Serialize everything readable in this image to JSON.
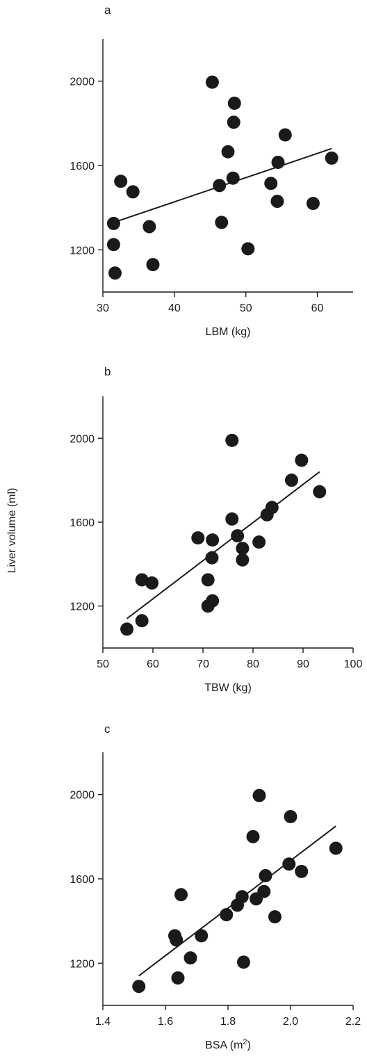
{
  "figure": {
    "shared_ylabel": "Liver volume (ml)"
  },
  "chart_data": [
    {
      "type": "scatter",
      "panel": "a",
      "xlabel": "LBM (kg)",
      "ylabel": "",
      "xlim": [
        30,
        65
      ],
      "ylim": [
        1000,
        2200
      ],
      "xticks": [
        30,
        40,
        50,
        60
      ],
      "xtick_labels": [
        "30",
        "40",
        "50",
        "60"
      ],
      "yticks": [
        1200,
        1600,
        2000
      ],
      "ytick_labels": [
        "1200",
        "1600",
        "2000"
      ],
      "points": [
        {
          "x": 31.5,
          "y": 1325
        },
        {
          "x": 32.5,
          "y": 1525
        },
        {
          "x": 34.2,
          "y": 1475
        },
        {
          "x": 31.5,
          "y": 1225
        },
        {
          "x": 31.7,
          "y": 1090
        },
        {
          "x": 36.5,
          "y": 1310
        },
        {
          "x": 37.0,
          "y": 1130
        },
        {
          "x": 45.3,
          "y": 1995
        },
        {
          "x": 48.4,
          "y": 1895
        },
        {
          "x": 48.3,
          "y": 1805
        },
        {
          "x": 47.5,
          "y": 1665
        },
        {
          "x": 48.2,
          "y": 1540
        },
        {
          "x": 46.3,
          "y": 1505
        },
        {
          "x": 46.6,
          "y": 1330
        },
        {
          "x": 50.3,
          "y": 1205
        },
        {
          "x": 53.5,
          "y": 1515
        },
        {
          "x": 54.5,
          "y": 1615
        },
        {
          "x": 54.4,
          "y": 1430
        },
        {
          "x": 55.5,
          "y": 1745
        },
        {
          "x": 59.4,
          "y": 1420
        },
        {
          "x": 62.0,
          "y": 1635
        }
      ],
      "regression": {
        "x": [
          31.5,
          62.0
        ],
        "y": [
          1330,
          1680
        ]
      }
    },
    {
      "type": "scatter",
      "panel": "b",
      "xlabel": "TBW (kg)",
      "ylabel": "",
      "xlim": [
        50,
        100
      ],
      "ylim": [
        1000,
        2200
      ],
      "xticks": [
        50,
        60,
        70,
        80,
        90,
        100
      ],
      "xtick_labels": [
        "50",
        "60",
        "70",
        "80",
        "90",
        "100"
      ],
      "yticks": [
        1200,
        1600,
        2000
      ],
      "ytick_labels": [
        "1200",
        "1600",
        "2000"
      ],
      "points": [
        {
          "x": 54.8,
          "y": 1090
        },
        {
          "x": 57.8,
          "y": 1130
        },
        {
          "x": 57.8,
          "y": 1325
        },
        {
          "x": 59.8,
          "y": 1310
        },
        {
          "x": 69.0,
          "y": 1525
        },
        {
          "x": 71.9,
          "y": 1515
        },
        {
          "x": 71.8,
          "y": 1430
        },
        {
          "x": 71.0,
          "y": 1325
        },
        {
          "x": 71.0,
          "y": 1200
        },
        {
          "x": 71.9,
          "y": 1225
        },
        {
          "x": 75.8,
          "y": 1990
        },
        {
          "x": 75.8,
          "y": 1615
        },
        {
          "x": 76.9,
          "y": 1535
        },
        {
          "x": 77.9,
          "y": 1475
        },
        {
          "x": 77.9,
          "y": 1420
        },
        {
          "x": 81.2,
          "y": 1505
        },
        {
          "x": 82.8,
          "y": 1635
        },
        {
          "x": 83.8,
          "y": 1670
        },
        {
          "x": 87.7,
          "y": 1800
        },
        {
          "x": 89.7,
          "y": 1895
        },
        {
          "x": 93.3,
          "y": 1745
        }
      ],
      "regression": {
        "x": [
          54.8,
          93.3
        ],
        "y": [
          1140,
          1840
        ]
      }
    },
    {
      "type": "scatter",
      "panel": "c",
      "xlabel": "BSA (m",
      "xlabel_superscript": "2",
      "xlabel_suffix": ")",
      "ylabel": "",
      "xlim": [
        1.4,
        2.2
      ],
      "ylim": [
        1000,
        2200
      ],
      "xticks": [
        1.4,
        1.6,
        1.8,
        2.0,
        2.2
      ],
      "xtick_labels": [
        "1.4",
        "1.6",
        "1.8",
        "2.0",
        "2.2"
      ],
      "yticks": [
        1200,
        1600,
        2000
      ],
      "ytick_labels": [
        "1200",
        "1600",
        "2000"
      ],
      "points": [
        {
          "x": 1.515,
          "y": 1090
        },
        {
          "x": 1.63,
          "y": 1330
        },
        {
          "x": 1.635,
          "y": 1310
        },
        {
          "x": 1.64,
          "y": 1130
        },
        {
          "x": 1.65,
          "y": 1525
        },
        {
          "x": 1.68,
          "y": 1225
        },
        {
          "x": 1.715,
          "y": 1330
        },
        {
          "x": 1.795,
          "y": 1430
        },
        {
          "x": 1.83,
          "y": 1475
        },
        {
          "x": 1.845,
          "y": 1515
        },
        {
          "x": 1.85,
          "y": 1205
        },
        {
          "x": 1.88,
          "y": 1800
        },
        {
          "x": 1.89,
          "y": 1505
        },
        {
          "x": 1.9,
          "y": 1995
        },
        {
          "x": 1.915,
          "y": 1540
        },
        {
          "x": 1.92,
          "y": 1615
        },
        {
          "x": 1.95,
          "y": 1420
        },
        {
          "x": 1.995,
          "y": 1670
        },
        {
          "x": 2.0,
          "y": 1895
        },
        {
          "x": 2.035,
          "y": 1635
        },
        {
          "x": 2.145,
          "y": 1745
        }
      ],
      "regression": {
        "x": [
          1.515,
          2.145
        ],
        "y": [
          1140,
          1850
        ]
      }
    }
  ]
}
